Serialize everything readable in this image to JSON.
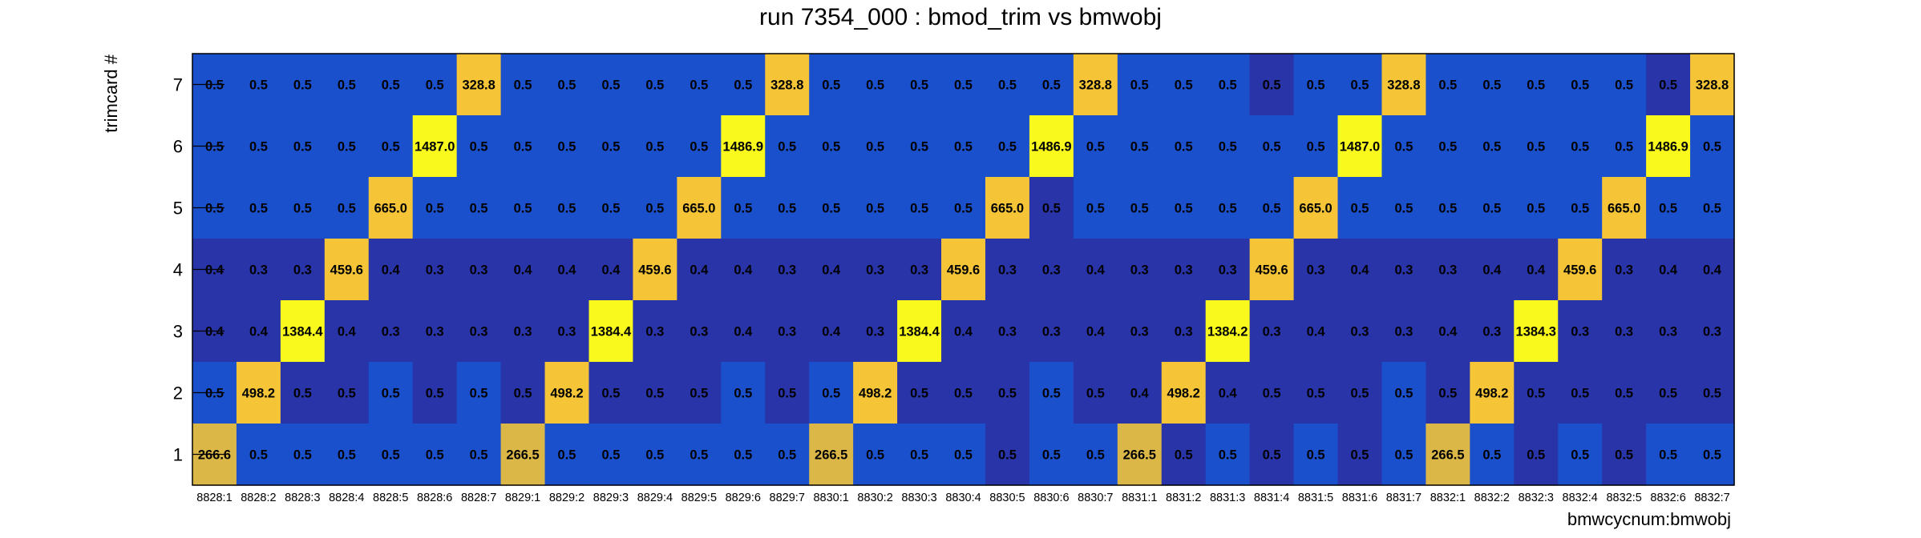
{
  "chart_data": {
    "type": "heatmap",
    "title": "run 7354_000 : bmod_trim vs bmwobj",
    "xlabel": "bmwcycnum:bmwobj",
    "ylabel": "trimcard #",
    "x_categories": [
      "8828:1",
      "8828:2",
      "8828:3",
      "8828:4",
      "8828:5",
      "8828:6",
      "8828:7",
      "8829:1",
      "8829:2",
      "8829:3",
      "8829:4",
      "8829:5",
      "8829:6",
      "8829:7",
      "8830:1",
      "8830:2",
      "8830:3",
      "8830:4",
      "8830:5",
      "8830:6",
      "8830:7",
      "8831:1",
      "8831:2",
      "8831:3",
      "8831:4",
      "8831:5",
      "8831:6",
      "8831:7",
      "8832:1",
      "8832:2",
      "8832:3",
      "8832:4",
      "8832:5",
      "8832:6",
      "8832:7"
    ],
    "y_categories": [
      "1",
      "2",
      "3",
      "4",
      "5",
      "6",
      "7"
    ],
    "cells": [
      {
        "y": "7",
        "labels": [
          "0.5",
          "0.5",
          "0.5",
          "0.5",
          "0.5",
          "0.5",
          "328.8",
          "0.5",
          "0.5",
          "0.5",
          "0.5",
          "0.5",
          "0.5",
          "328.8",
          "0.5",
          "0.5",
          "0.5",
          "0.5",
          "0.5",
          "0.5",
          "328.8",
          "0.5",
          "0.5",
          "0.5",
          "0.5",
          "0.5",
          "0.5",
          "328.8",
          "0.5",
          "0.5",
          "0.5",
          "0.5",
          "0.5",
          "0.5",
          "328.8"
        ],
        "tones": [
          "b",
          "b",
          "b",
          "b",
          "b",
          "b",
          "y",
          "b",
          "b",
          "b",
          "b",
          "b",
          "b",
          "y",
          "b",
          "b",
          "b",
          "b",
          "b",
          "b",
          "y",
          "b",
          "b",
          "b",
          "d",
          "b",
          "b",
          "y",
          "b",
          "b",
          "b",
          "b",
          "b",
          "d",
          "y"
        ]
      },
      {
        "y": "6",
        "labels": [
          "0.5",
          "0.5",
          "0.5",
          "0.5",
          "0.5",
          "1487.0",
          "0.5",
          "0.5",
          "0.5",
          "0.5",
          "0.5",
          "0.5",
          "1486.9",
          "0.5",
          "0.5",
          "0.5",
          "0.5",
          "0.5",
          "0.5",
          "1486.9",
          "0.5",
          "0.5",
          "0.5",
          "0.5",
          "0.5",
          "0.5",
          "1487.0",
          "0.5",
          "0.5",
          "0.5",
          "0.5",
          "0.5",
          "0.5",
          "1486.9",
          "0.5"
        ],
        "tones": [
          "b",
          "b",
          "b",
          "b",
          "b",
          "Y",
          "b",
          "b",
          "b",
          "b",
          "b",
          "b",
          "Y",
          "b",
          "b",
          "b",
          "b",
          "b",
          "b",
          "Y",
          "b",
          "b",
          "b",
          "b",
          "b",
          "b",
          "Y",
          "b",
          "b",
          "b",
          "b",
          "b",
          "b",
          "Y",
          "b"
        ]
      },
      {
        "y": "5",
        "labels": [
          "0.5",
          "0.5",
          "0.5",
          "0.5",
          "665.0",
          "0.5",
          "0.5",
          "0.5",
          "0.5",
          "0.5",
          "0.5",
          "665.0",
          "0.5",
          "0.5",
          "0.5",
          "0.5",
          "0.5",
          "0.5",
          "665.0",
          "0.5",
          "0.5",
          "0.5",
          "0.5",
          "0.5",
          "0.5",
          "665.0",
          "0.5",
          "0.5",
          "0.5",
          "0.5",
          "0.5",
          "0.5",
          "665.0",
          "0.5",
          "0.5"
        ],
        "tones": [
          "b",
          "b",
          "b",
          "b",
          "y",
          "b",
          "b",
          "b",
          "b",
          "b",
          "b",
          "y",
          "b",
          "b",
          "b",
          "b",
          "b",
          "b",
          "y",
          "d",
          "b",
          "b",
          "b",
          "b",
          "b",
          "y",
          "b",
          "b",
          "b",
          "b",
          "b",
          "b",
          "y",
          "b",
          "b"
        ]
      },
      {
        "y": "4",
        "labels": [
          "0.4",
          "0.3",
          "0.3",
          "459.6",
          "0.4",
          "0.3",
          "0.3",
          "0.4",
          "0.4",
          "0.4",
          "459.6",
          "0.4",
          "0.4",
          "0.3",
          "0.4",
          "0.3",
          "0.3",
          "459.6",
          "0.3",
          "0.3",
          "0.4",
          "0.3",
          "0.3",
          "0.3",
          "459.6",
          "0.3",
          "0.4",
          "0.3",
          "0.3",
          "0.4",
          "0.4",
          "459.6",
          "0.3",
          "0.4",
          "0.4"
        ],
        "tones": [
          "d",
          "d",
          "d",
          "y",
          "d",
          "d",
          "d",
          "d",
          "d",
          "d",
          "y",
          "d",
          "d",
          "d",
          "d",
          "d",
          "d",
          "y",
          "d",
          "d",
          "d",
          "d",
          "d",
          "d",
          "y",
          "d",
          "d",
          "d",
          "d",
          "d",
          "d",
          "y",
          "d",
          "d",
          "d"
        ]
      },
      {
        "y": "3",
        "labels": [
          "0.4",
          "0.4",
          "1384.4",
          "0.4",
          "0.3",
          "0.3",
          "0.3",
          "0.3",
          "0.3",
          "1384.4",
          "0.3",
          "0.3",
          "0.4",
          "0.3",
          "0.4",
          "0.3",
          "1384.4",
          "0.4",
          "0.3",
          "0.3",
          "0.4",
          "0.3",
          "0.3",
          "1384.2",
          "0.3",
          "0.4",
          "0.3",
          "0.3",
          "0.4",
          "0.3",
          "1384.3",
          "0.3",
          "0.3",
          "0.3",
          "0.3"
        ],
        "tones": [
          "d",
          "d",
          "Y",
          "d",
          "d",
          "d",
          "d",
          "d",
          "d",
          "Y",
          "d",
          "d",
          "d",
          "d",
          "d",
          "d",
          "Y",
          "d",
          "d",
          "d",
          "d",
          "d",
          "d",
          "Y",
          "d",
          "d",
          "d",
          "d",
          "d",
          "d",
          "Y",
          "d",
          "d",
          "d",
          "d"
        ]
      },
      {
        "y": "2",
        "labels": [
          "0.5",
          "498.2",
          "0.5",
          "0.5",
          "0.5",
          "0.5",
          "0.5",
          "0.5",
          "498.2",
          "0.5",
          "0.5",
          "0.5",
          "0.5",
          "0.5",
          "0.5",
          "498.2",
          "0.5",
          "0.5",
          "0.5",
          "0.5",
          "0.5",
          "0.4",
          "498.2",
          "0.4",
          "0.5",
          "0.5",
          "0.5",
          "0.5",
          "0.5",
          "498.2",
          "0.5",
          "0.5",
          "0.5",
          "0.5",
          "0.5"
        ],
        "tones": [
          "b",
          "y",
          "d",
          "d",
          "b",
          "d",
          "b",
          "d",
          "y",
          "d",
          "d",
          "d",
          "b",
          "d",
          "b",
          "y",
          "d",
          "d",
          "d",
          "b",
          "d",
          "d",
          "y",
          "d",
          "d",
          "d",
          "d",
          "b",
          "d",
          "y",
          "d",
          "d",
          "d",
          "d",
          "d"
        ]
      },
      {
        "y": "1",
        "labels": [
          "266.6",
          "0.5",
          "0.5",
          "0.5",
          "0.5",
          "0.5",
          "0.5",
          "266.5",
          "0.5",
          "0.5",
          "0.5",
          "0.5",
          "0.5",
          "0.5",
          "266.5",
          "0.5",
          "0.5",
          "0.5",
          "0.5",
          "0.5",
          "0.5",
          "266.5",
          "0.5",
          "0.5",
          "0.5",
          "0.5",
          "0.5",
          "0.5",
          "266.5",
          "0.5",
          "0.5",
          "0.5",
          "0.5",
          "0.5",
          "0.5"
        ],
        "tones": [
          "g",
          "b",
          "b",
          "b",
          "b",
          "b",
          "b",
          "g",
          "b",
          "b",
          "b",
          "b",
          "b",
          "b",
          "g",
          "b",
          "b",
          "b",
          "d",
          "b",
          "b",
          "g",
          "d",
          "b",
          "d",
          "b",
          "d",
          "b",
          "g",
          "b",
          "d",
          "b",
          "d",
          "b",
          "b"
        ]
      }
    ],
    "grid": false,
    "legend": "none"
  },
  "colors": {
    "b": "#1b50cd",
    "d": "#2834a8",
    "y": "#f5c537",
    "Y": "#f9f91d",
    "g": "#dbb748",
    "text": "#000000",
    "frame": "#000000"
  }
}
